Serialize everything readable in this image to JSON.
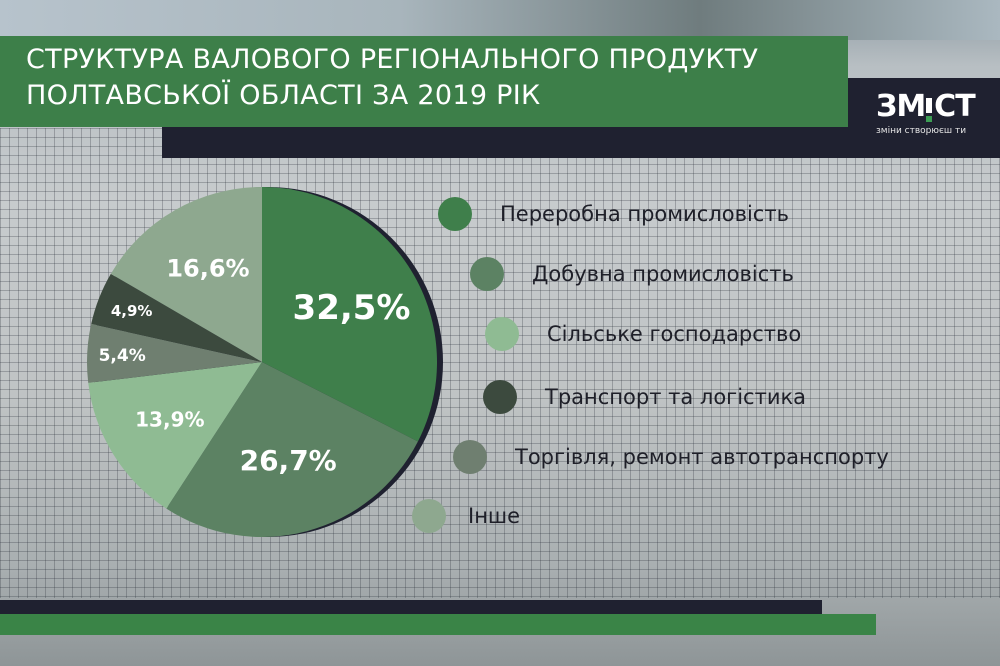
{
  "header": {
    "title_line1": "СТРУКТУРА ВАЛОВОГО РЕГІОНАЛЬНОГО ПРОДУКТУ",
    "title_line2": "ПОЛТАВСЬКОЇ ОБЛАСТІ ЗА 2019 РІК"
  },
  "logo": {
    "part1": "ЗМ",
    "part2": "СТ",
    "tagline": "зміни створюєш ти"
  },
  "colors": {
    "title_green": "#3d7f49",
    "dark_navy": "#1f2130",
    "bottom_green": "#3a8447"
  },
  "chart_data": {
    "type": "pie",
    "title": "Структура валового регіонального продукту Полтавської області за 2019 рік",
    "unit": "%",
    "slices": [
      {
        "label": "Переробна промисловість",
        "value": 32.5,
        "display": "32,5%",
        "color": "#3f7f4b"
      },
      {
        "label": "Добувна промисловість",
        "value": 26.7,
        "display": "26,7%",
        "color": "#5c8263"
      },
      {
        "label": "Сільське господарство",
        "value": 13.9,
        "display": "13,9%",
        "color": "#8fbb93"
      },
      {
        "label": "Торгівля, ремонт автотранспорту",
        "value": 5.4,
        "display": "5,4%",
        "color": "#6f7f70"
      },
      {
        "label": "Транспорт та логістика",
        "value": 4.9,
        "display": "4,9%",
        "color": "#3c4a3e"
      },
      {
        "label": "Інше",
        "value": 16.6,
        "display": "16,6%",
        "color": "#8ea88f"
      }
    ],
    "legend_position": "right"
  },
  "legend": [
    {
      "label": "Переробна промисловість",
      "color": "#3f7f4b"
    },
    {
      "label": "Добувна промисловість",
      "color": "#5c8263"
    },
    {
      "label": "Сільське господарство",
      "color": "#8fbb93"
    },
    {
      "label": "Транспорт та логістика",
      "color": "#3c4a3e"
    },
    {
      "label": "Торгівля, ремонт автотранспорту",
      "color": "#6f7f70"
    },
    {
      "label": "Інше",
      "color": "#8ea88f"
    }
  ]
}
